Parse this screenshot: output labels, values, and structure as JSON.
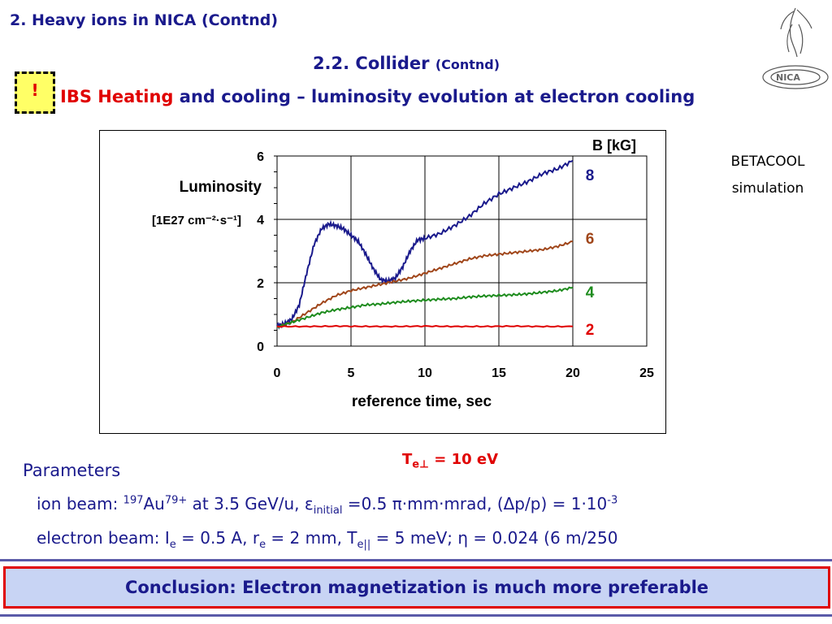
{
  "header": {
    "title": "2. Heavy ions in NICA (Contnd)",
    "subtitle_main": "2.2. Collider",
    "subtitle_small": "(Contnd)",
    "warn_symbol": "!",
    "headline_red": "IBS Heating",
    "headline_rest": " and cooling – luminosity evolution at electron cooling",
    "logo_text": "NICA"
  },
  "sim_note": {
    "line1": "BETACOOL",
    "line2": "simulation"
  },
  "te_note": {
    "prefix": "T",
    "sub": "e⊥",
    "rest": " = 10 eV"
  },
  "params": {
    "title": "Parameters",
    "ion": {
      "p1": "ion beam: ",
      "sup1": "197",
      "p2": "Au",
      "sup2": "79+",
      "p3": " at 3.5 GeV/u, ε",
      "sub1": "initial",
      "p4": " =0.5 π·mm·mrad, (Δp/p) = 1·10",
      "sup3": "-3"
    },
    "electron": {
      "p1": "electron beam: I",
      "sub1": "e",
      "p2": " = 0.5 A, r",
      "sub2": "e",
      "p3": " = 2 mm, T",
      "sub3": "e||",
      "p4": " = 5 meV; η = 0.024 (6 m/250"
    }
  },
  "conclusion": "Conclusion: Electron magnetization is much more preferable",
  "colors": {
    "title_blue": "#1a1a8c",
    "accent_red": "#e00000",
    "series_8": "#1a1a8c",
    "series_6": "#a0461a",
    "series_4": "#1e8c1e",
    "series_2": "#e00000"
  },
  "chart_data": {
    "type": "line",
    "xlabel": "reference time, sec",
    "ylabel_line1": "Luminosity",
    "ylabel_line2": "[1E27 cm⁻²·s⁻¹]",
    "xlim": [
      0,
      25
    ],
    "ylim": [
      0,
      6
    ],
    "x_ticks": [
      "0",
      "5",
      "10",
      "15",
      "20",
      "25"
    ],
    "y_ticks": [
      "0",
      "2",
      "4",
      "6"
    ],
    "grid": true,
    "legend_title": "B [kG]",
    "legend_placement": "right",
    "series": [
      {
        "name": "8",
        "color": "#1a1a8c",
        "x": [
          0,
          0.5,
          1,
          1.5,
          2,
          2.5,
          3,
          3.5,
          4,
          4.5,
          5,
          5.5,
          6,
          6.5,
          7,
          7.5,
          8,
          8.5,
          9,
          9.5,
          10,
          11,
          12,
          13,
          14,
          15,
          16,
          17,
          18,
          19,
          20
        ],
        "y": [
          0.65,
          0.7,
          0.85,
          1.3,
          2.3,
          3.2,
          3.7,
          3.85,
          3.8,
          3.7,
          3.5,
          3.3,
          2.9,
          2.45,
          2.1,
          2.05,
          2.15,
          2.5,
          3.0,
          3.35,
          3.4,
          3.55,
          3.8,
          4.1,
          4.5,
          4.8,
          5.0,
          5.2,
          5.45,
          5.6,
          5.85
        ]
      },
      {
        "name": "6",
        "color": "#a0461a",
        "x": [
          0,
          1,
          2,
          3,
          4,
          5,
          6,
          7,
          8,
          9,
          10,
          11,
          12,
          13,
          14,
          15,
          16,
          17,
          18,
          19,
          20
        ],
        "y": [
          0.6,
          0.75,
          1.05,
          1.35,
          1.6,
          1.75,
          1.85,
          1.95,
          2.05,
          2.15,
          2.3,
          2.45,
          2.6,
          2.75,
          2.85,
          2.9,
          2.95,
          3.0,
          3.05,
          3.15,
          3.3
        ]
      },
      {
        "name": "4",
        "color": "#1e8c1e",
        "x": [
          0,
          1,
          2,
          3,
          4,
          5,
          6,
          7,
          8,
          9,
          10,
          11,
          12,
          13,
          14,
          15,
          16,
          17,
          18,
          19,
          20
        ],
        "y": [
          0.6,
          0.75,
          0.9,
          1.05,
          1.15,
          1.22,
          1.3,
          1.33,
          1.38,
          1.42,
          1.45,
          1.48,
          1.5,
          1.55,
          1.58,
          1.6,
          1.62,
          1.65,
          1.7,
          1.75,
          1.85
        ]
      },
      {
        "name": "2",
        "color": "#e00000",
        "x": [
          0,
          2,
          4,
          6,
          8,
          10,
          12,
          14,
          16,
          18,
          20
        ],
        "y": [
          0.62,
          0.62,
          0.63,
          0.62,
          0.62,
          0.63,
          0.62,
          0.62,
          0.63,
          0.62,
          0.62
        ]
      }
    ]
  }
}
